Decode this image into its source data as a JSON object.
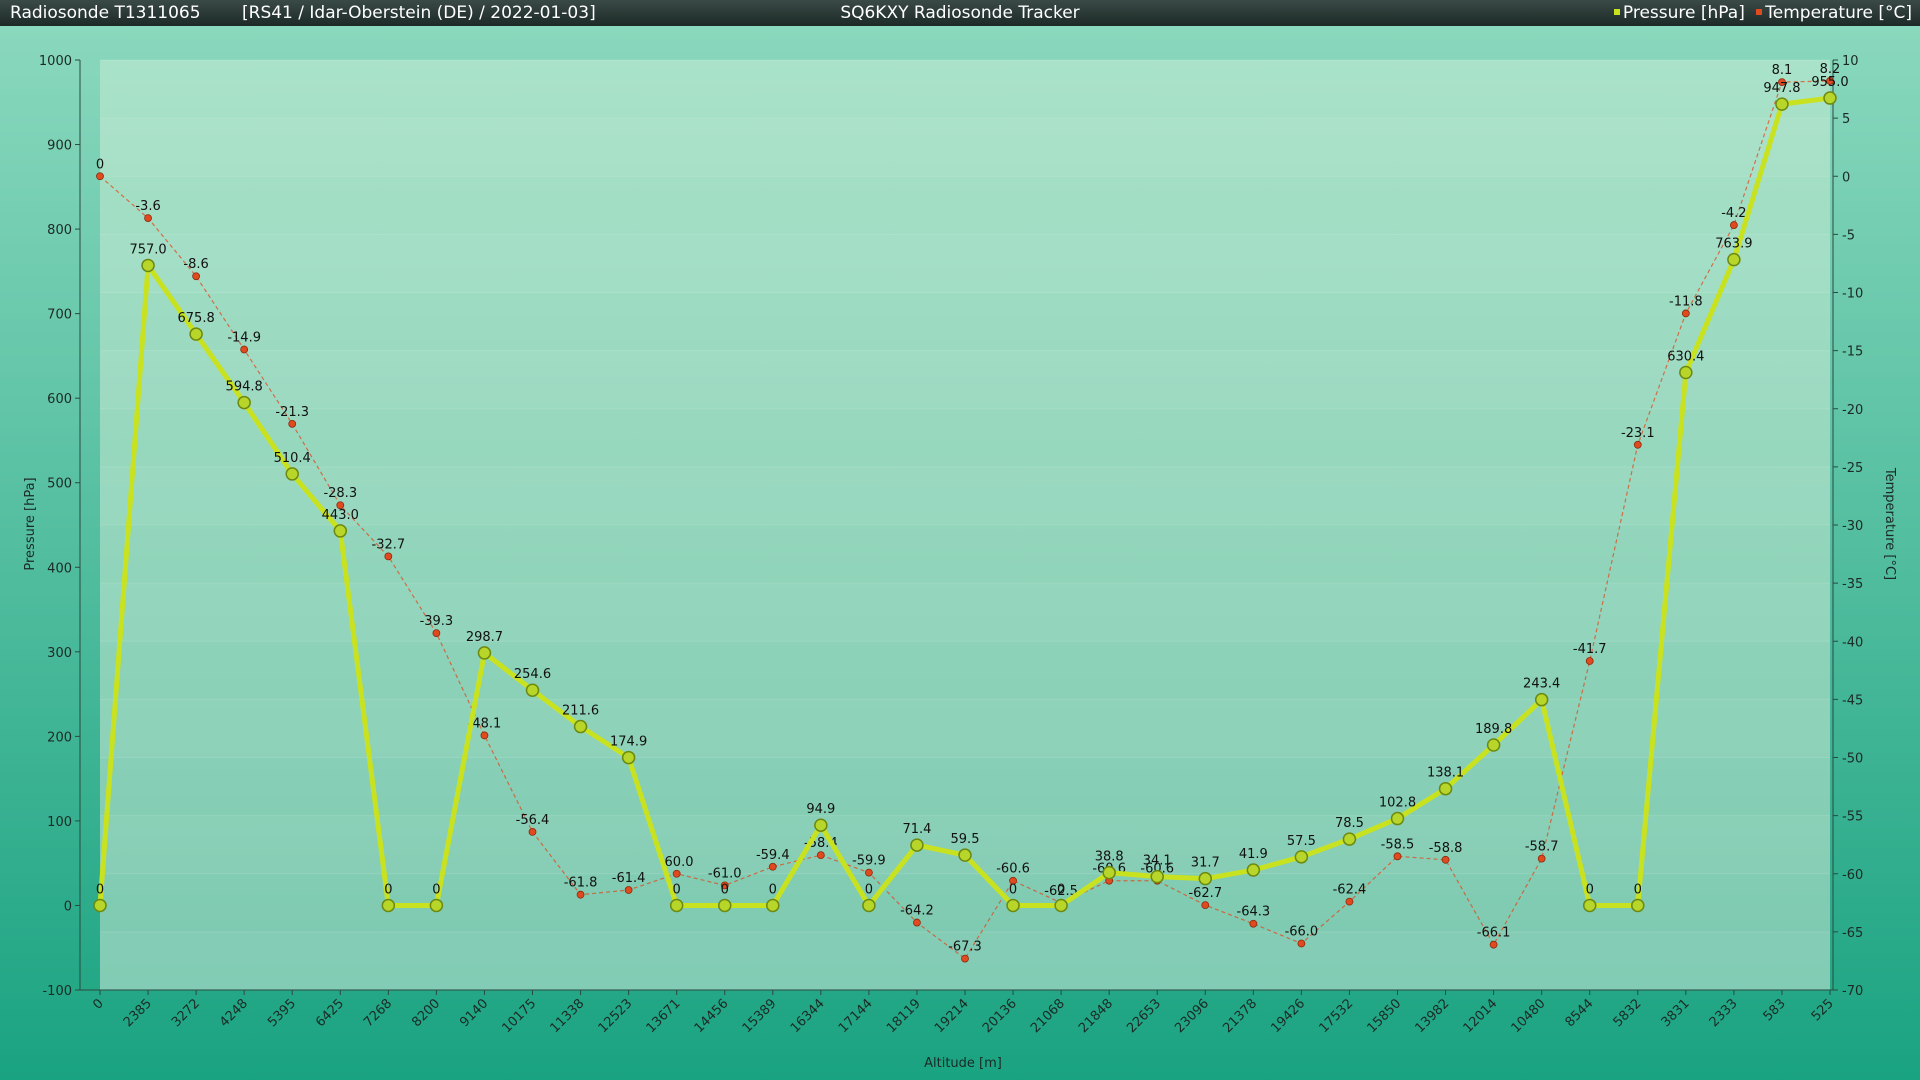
{
  "header": {
    "radiosonde": "Radiosonde T1311065",
    "info": "[RS41 / Idar-Oberstein (DE) / 2022-01-03]",
    "app_title": "SQ6KXY Radiosonde Tracker"
  },
  "colors": {
    "pressure": "#c9e21f",
    "temperature": "#e04a1e",
    "plot_bg_top": "#a9e2c8",
    "plot_bg_bottom": "#7cc9b0",
    "outer_top": "#8ad8bd",
    "outer_bottom": "#1aa381"
  },
  "chart_data": {
    "type": "line",
    "title": "SQ6KXY Radiosonde Tracker",
    "xlabel": "Altitude [m]",
    "ylabel": "Pressure [hPa]",
    "y2label": "Temperature [°C]",
    "ylim": [
      -100,
      1000
    ],
    "y2lim": [
      -70,
      10
    ],
    "yticks": [
      -100,
      0,
      100,
      200,
      300,
      400,
      500,
      600,
      700,
      800,
      900,
      1000
    ],
    "y2ticks": [
      -70,
      -65,
      -60,
      -55,
      -50,
      -45,
      -40,
      -35,
      -30,
      -25,
      -20,
      -15,
      -10,
      -5,
      0,
      5,
      10
    ],
    "legend_position": "top-right",
    "categories": [
      "0",
      "2385",
      "3272",
      "4248",
      "5395",
      "6425",
      "7268",
      "8200",
      "9140",
      "10175",
      "11338",
      "12523",
      "13671",
      "14456",
      "15389",
      "16344",
      "17144",
      "18119",
      "19214",
      "20136",
      "21068",
      "21848",
      "22653",
      "23096",
      "21378",
      "19426",
      "17532",
      "15850",
      "13982",
      "12014",
      "10480",
      "8544",
      "5832",
      "3831",
      "2333",
      "583",
      "525"
    ],
    "series": [
      {
        "name": "Pressure [hPa]",
        "axis": "left",
        "values": [
          0,
          757.0,
          675.8,
          594.8,
          510.4,
          443.0,
          0,
          0,
          298.7,
          254.6,
          211.6,
          174.9,
          0,
          0,
          0,
          94.9,
          0,
          71.4,
          59.5,
          0,
          0,
          38.8,
          34.1,
          31.7,
          41.9,
          57.5,
          78.5,
          102.8,
          138.1,
          189.8,
          243.4,
          0,
          0,
          630.4,
          763.9,
          947.8,
          955.0
        ],
        "labels": [
          "0",
          "757.0",
          "675.8",
          "594.8",
          "510.4",
          "443.0",
          "0",
          "0",
          "298.7",
          "254.6",
          "211.6",
          "174.9",
          "0",
          "0",
          "0",
          "94.9",
          "0",
          "71.4",
          "59.5",
          "0",
          "0",
          "38.8",
          "34.1",
          "31.7",
          "41.9",
          "57.5",
          "78.5",
          "102.8",
          "138.1",
          "189.8",
          "243.4",
          "0",
          "0",
          "630.4",
          "763.9",
          "947.8",
          "955.0"
        ]
      },
      {
        "name": "Temperature [°C]",
        "axis": "right",
        "values": [
          0,
          -3.6,
          -8.6,
          -14.9,
          -21.3,
          -28.3,
          -32.7,
          -39.3,
          -48.1,
          -56.4,
          -61.8,
          -61.4,
          -60.0,
          -61.0,
          -59.4,
          -58.4,
          -59.9,
          -64.2,
          -67.3,
          -60.6,
          -62.5,
          -60.6,
          -60.6,
          -62.7,
          -64.3,
          -66.0,
          -62.4,
          -58.5,
          -58.8,
          -66.1,
          -58.7,
          -41.7,
          -23.1,
          -11.8,
          -4.2,
          8.1,
          8.2
        ],
        "labels": [
          "0",
          "-3.6",
          "-8.6",
          "-14.9",
          "-21.3",
          "-28.3",
          "-32.7",
          "-39.3",
          "-48.1",
          "-56.4",
          "-61.8",
          "-61.4",
          "-60.0",
          "-61.0",
          "-59.4",
          "-58.4",
          "-59.9",
          "-64.2",
          "-67.3",
          "-60.6",
          "-62.5",
          "-60.6",
          "-60.6",
          "-62.7",
          "-64.3",
          "-66.0",
          "-62.4",
          "-58.5",
          "-58.8",
          "-66.1",
          "-58.7",
          "-41.7",
          "-23.1",
          "-11.8",
          "-4.2",
          "8.1",
          "8.2"
        ]
      }
    ]
  }
}
